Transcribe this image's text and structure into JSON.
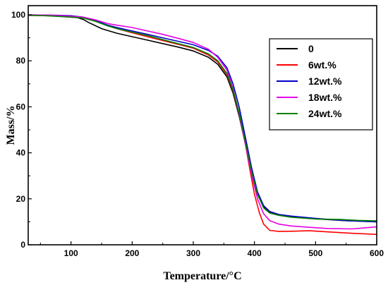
{
  "chart_data": {
    "type": "line",
    "title": "",
    "xlabel": "Temperature/°C",
    "ylabel": "Mass/%",
    "xlim": [
      30,
      600
    ],
    "ylim": [
      0,
      104
    ],
    "xticks": [
      100,
      200,
      300,
      400,
      500,
      600
    ],
    "yticks": [
      0,
      20,
      40,
      60,
      80,
      100
    ],
    "grid": false,
    "legend_position": "top-right",
    "series": [
      {
        "name": "0",
        "color": "#000000",
        "x": [
          30,
          60,
          80,
          100,
          110,
          120,
          130,
          150,
          175,
          200,
          225,
          250,
          275,
          300,
          325,
          340,
          355,
          365,
          375,
          385,
          395,
          405,
          415,
          425,
          440,
          460,
          500,
          550,
          600
        ],
        "y": [
          99.8,
          99.7,
          99.4,
          99.0,
          98.8,
          98.0,
          96.5,
          94.0,
          92.0,
          90.5,
          89.0,
          87.5,
          86.0,
          84.3,
          81.5,
          78.5,
          73.0,
          66.0,
          56.0,
          44.0,
          32.0,
          22.0,
          16.5,
          14.2,
          13.0,
          12.2,
          11.3,
          10.5,
          10.0
        ]
      },
      {
        "name": "6wt.%",
        "color": "#ff0000",
        "x": [
          30,
          60,
          80,
          100,
          120,
          140,
          160,
          175,
          200,
          225,
          250,
          275,
          300,
          325,
          340,
          355,
          365,
          375,
          385,
          393,
          400,
          408,
          415,
          425,
          440,
          460,
          490,
          520,
          560,
          600
        ],
        "y": [
          99.8,
          99.6,
          99.4,
          99.2,
          98.8,
          97.5,
          95.5,
          94.0,
          92.2,
          90.5,
          88.8,
          87.2,
          85.5,
          82.5,
          79.5,
          74.0,
          67.0,
          57.0,
          44.0,
          32.0,
          22.0,
          14.0,
          9.0,
          6.3,
          5.8,
          5.9,
          6.1,
          5.6,
          5.0,
          4.5
        ]
      },
      {
        "name": "12wt.%",
        "color": "#0000c8",
        "x": [
          30,
          60,
          80,
          100,
          120,
          140,
          160,
          175,
          200,
          225,
          250,
          275,
          300,
          325,
          340,
          355,
          365,
          375,
          385,
          395,
          405,
          415,
          425,
          440,
          460,
          500,
          550,
          600
        ],
        "y": [
          100.0,
          99.9,
          99.8,
          99.6,
          99.0,
          97.5,
          95.5,
          94.5,
          93.0,
          91.5,
          90.0,
          88.5,
          87.0,
          84.5,
          82.0,
          77.0,
          70.0,
          60.0,
          47.0,
          34.0,
          23.0,
          17.0,
          14.5,
          13.2,
          12.5,
          11.5,
          10.5,
          10.0
        ]
      },
      {
        "name": "18wt.%",
        "color": "#e600e6",
        "x": [
          30,
          60,
          80,
          100,
          120,
          140,
          160,
          175,
          200,
          225,
          250,
          275,
          300,
          325,
          340,
          355,
          365,
          375,
          385,
          395,
          405,
          415,
          425,
          440,
          460,
          490,
          520,
          560,
          600
        ],
        "y": [
          100.0,
          99.9,
          99.7,
          99.4,
          99.0,
          97.8,
          96.2,
          95.5,
          94.5,
          93.0,
          91.5,
          89.8,
          88.0,
          85.0,
          81.5,
          76.0,
          68.0,
          57.0,
          44.0,
          31.0,
          20.0,
          13.5,
          10.5,
          9.0,
          8.2,
          7.6,
          7.1,
          6.9,
          7.8
        ]
      },
      {
        "name": "24wt.%",
        "color": "#008000",
        "x": [
          30,
          60,
          80,
          100,
          120,
          140,
          160,
          175,
          200,
          225,
          250,
          275,
          300,
          325,
          340,
          355,
          365,
          375,
          385,
          395,
          405,
          415,
          425,
          440,
          460,
          500,
          540,
          570,
          600
        ],
        "y": [
          99.8,
          99.6,
          99.3,
          99.0,
          98.6,
          97.2,
          95.2,
          94.0,
          92.5,
          91.0,
          89.2,
          87.5,
          85.8,
          83.0,
          80.0,
          74.5,
          67.5,
          57.5,
          45.0,
          32.5,
          22.0,
          16.0,
          13.8,
          12.8,
          12.0,
          11.2,
          11.0,
          10.6,
          10.4
        ]
      }
    ]
  }
}
